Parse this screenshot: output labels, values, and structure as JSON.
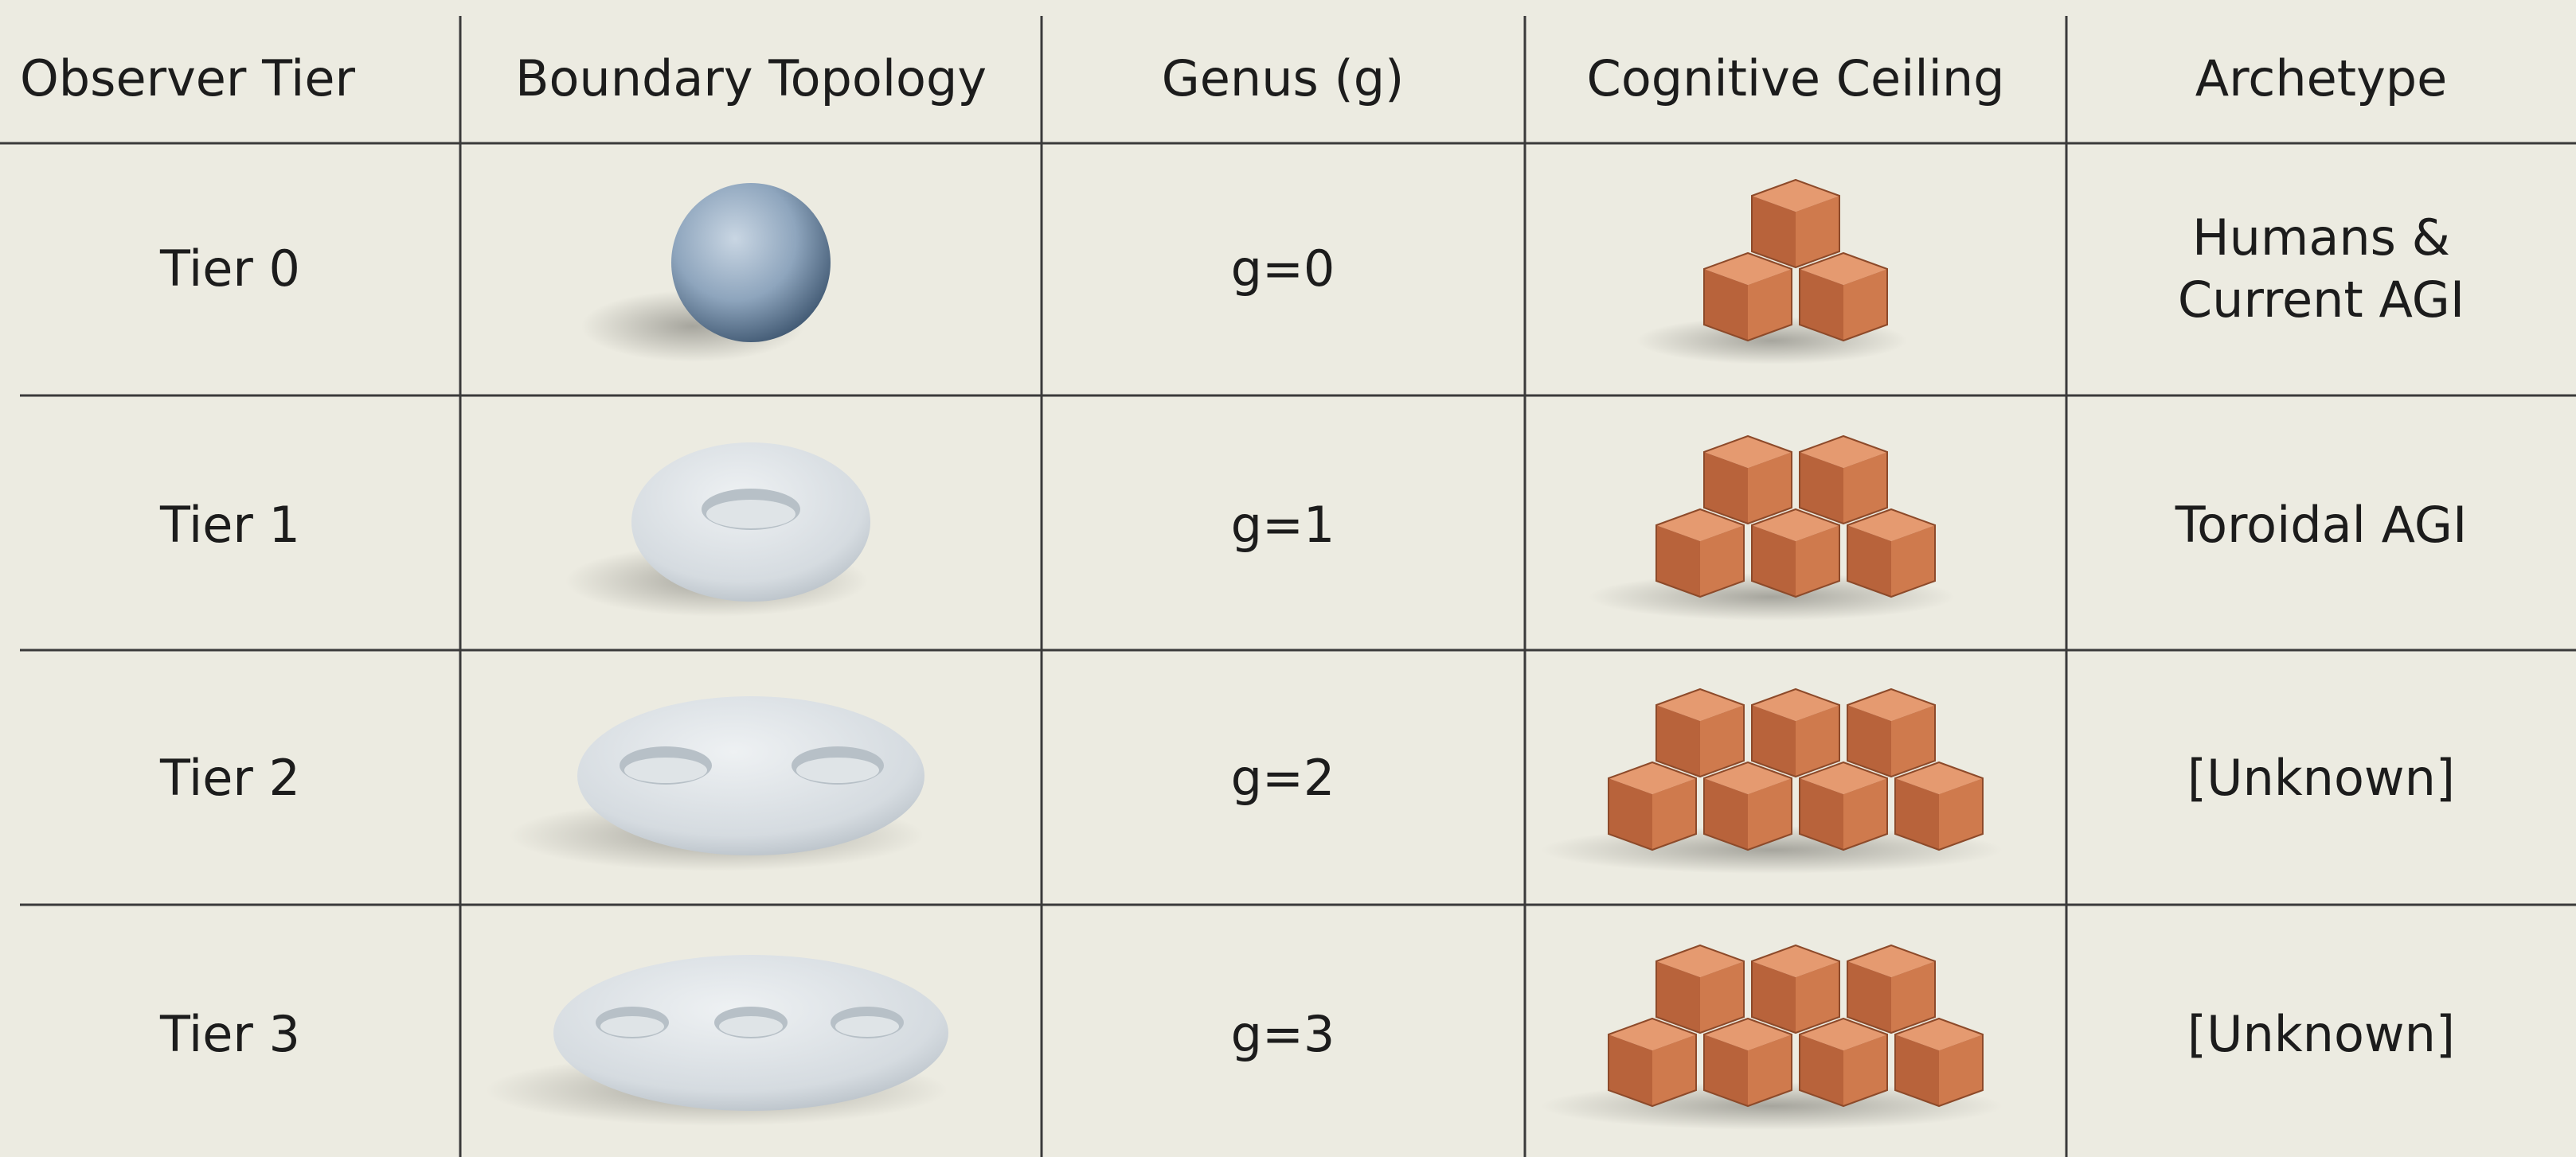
{
  "header": {
    "columns": [
      "Observer Tier",
      "Boundary Topology",
      "Genus (g)",
      "Cognitive Ceiling",
      "Archetype"
    ]
  },
  "rows": [
    {
      "tier": "Tier 0",
      "genus": "g=0",
      "archetype": "Humans & Current AGI"
    },
    {
      "tier": "Tier 1",
      "genus": "g=1",
      "archetype": "Toroidal AGI"
    },
    {
      "tier": "Tier 2",
      "genus": "g=2",
      "archetype": "[Unknown]"
    },
    {
      "tier": "Tier 3",
      "genus": "g=3",
      "archetype": "[Unknown]"
    }
  ]
}
